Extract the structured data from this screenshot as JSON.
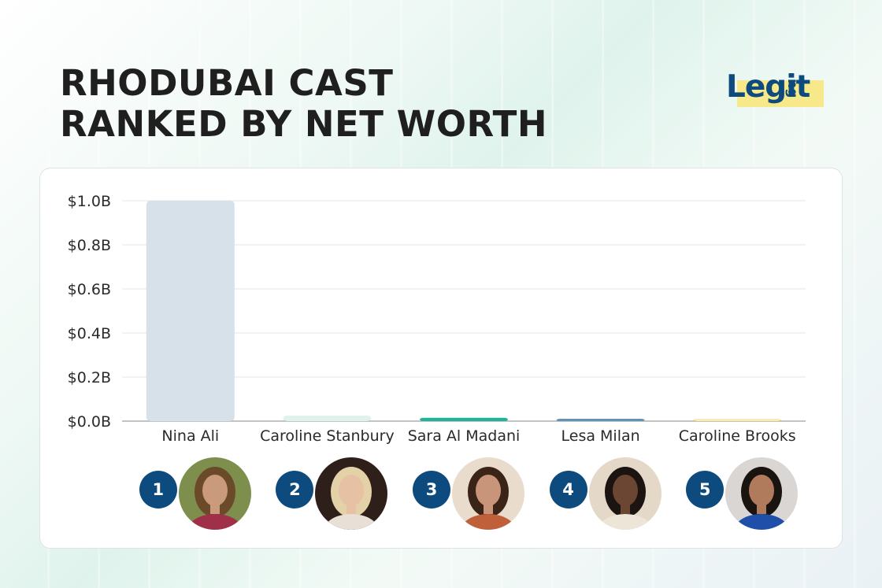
{
  "header": {
    "title_line1": "RHODUBAI CAST",
    "title_line2": "RANKED BY NET WORTH"
  },
  "logo": {
    "text": "Legit",
    "suffix": "ng",
    "text_color": "#0d4a7e",
    "highlight_color": "#f7e98a"
  },
  "chart_data": {
    "type": "bar",
    "categories": [
      "Nina Ali",
      "Caroline Stanbury",
      "Sara Al Madani",
      "Lesa Milan",
      "Caroline Brooks"
    ],
    "values": [
      1.0,
      0.025,
      0.015,
      0.007,
      0.003
    ],
    "bar_colors": [
      "#d6e1ea",
      "#dff3ec",
      "#1fb39a",
      "#5f93b6",
      "#f7ecb0"
    ],
    "yticks": [
      "$0.0B",
      "$0.2B",
      "$0.4B",
      "$0.6B",
      "$0.8B",
      "$1.0B"
    ],
    "ytick_values": [
      0,
      0.2,
      0.4,
      0.6,
      0.8,
      1.0
    ],
    "ylim": [
      0,
      1.0
    ],
    "grid": true,
    "xlabel": "",
    "ylabel": ""
  },
  "ranks": [
    {
      "number": "1",
      "icon": "portrait-nina-ali",
      "skin": "#c99a7c",
      "hair": "#6b4a2a",
      "bg": "#7d8e4d",
      "shirt": "#a0304a"
    },
    {
      "number": "2",
      "icon": "portrait-caroline-stanbury",
      "skin": "#e6c1a3",
      "hair": "#e3d2a8",
      "bg": "#2f1f1a",
      "shirt": "#e8e0d6"
    },
    {
      "number": "3",
      "icon": "portrait-sara-al-madani",
      "skin": "#c9957a",
      "hair": "#3a2418",
      "bg": "#e9dccc",
      "shirt": "#c0603a"
    },
    {
      "number": "4",
      "icon": "portrait-lesa-milan",
      "skin": "#6b4632",
      "hair": "#1c1410",
      "bg": "#e4d8c9",
      "shirt": "#ede6d8"
    },
    {
      "number": "5",
      "icon": "portrait-caroline-brooks",
      "skin": "#b07a5c",
      "hair": "#1a1410",
      "bg": "#d9d6d4",
      "shirt": "#1f4fa8"
    }
  ]
}
